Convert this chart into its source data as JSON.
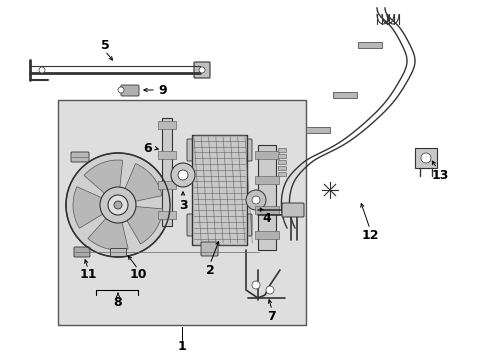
{
  "bg_color": "#ffffff",
  "box_bg": "#e0e0e0",
  "line_color": "#333333",
  "label_color": "#000000"
}
